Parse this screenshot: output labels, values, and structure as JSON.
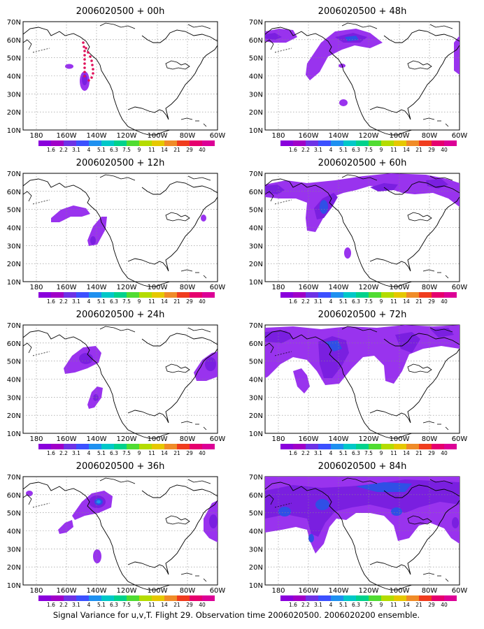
{
  "caption": "Signal Variance for u,v,T. Flight 29. Observation time 2006020500. 2006020200 ensemble.",
  "map": {
    "lat_labels": [
      "70N",
      "60N",
      "50N",
      "40N",
      "30N",
      "20N",
      "10N"
    ],
    "lon_labels": [
      "180",
      "160W",
      "140W",
      "120W",
      "100W",
      "80W",
      "60W"
    ],
    "lon_range": [
      -190,
      -60
    ],
    "lat_range": [
      10,
      70
    ]
  },
  "colorbar": {
    "labels": [
      "1.6",
      "2.2",
      "3.1",
      "4",
      "5.1",
      "6.3",
      "7.5",
      "9",
      "11",
      "14",
      "21",
      "29",
      "40"
    ],
    "colors": [
      "#8a00dc",
      "#a000c8",
      "#6e32e6",
      "#3c50ff",
      "#1e90f0",
      "#00c8c8",
      "#00d28c",
      "#50dc32",
      "#b4dc00",
      "#e6c800",
      "#f08c28",
      "#f03c1e",
      "#e6006e",
      "#dc0096"
    ]
  },
  "panels": [
    {
      "title": "2006020500 + 00h"
    },
    {
      "title": "2006020500 + 48h"
    },
    {
      "title": "2006020500 + 12h"
    },
    {
      "title": "2006020500 + 60h"
    },
    {
      "title": "2006020500 + 24h"
    },
    {
      "title": "2006020500 + 72h"
    },
    {
      "title": "2006020500 + 36h"
    },
    {
      "title": "2006020500 + 84h"
    }
  ],
  "flight_track_color": "#e0105a",
  "signal_colors": {
    "light": "#9933ee",
    "mid": "#7a1fe0",
    "high": "#2f4fe6",
    "peak": "#1e90f0"
  }
}
